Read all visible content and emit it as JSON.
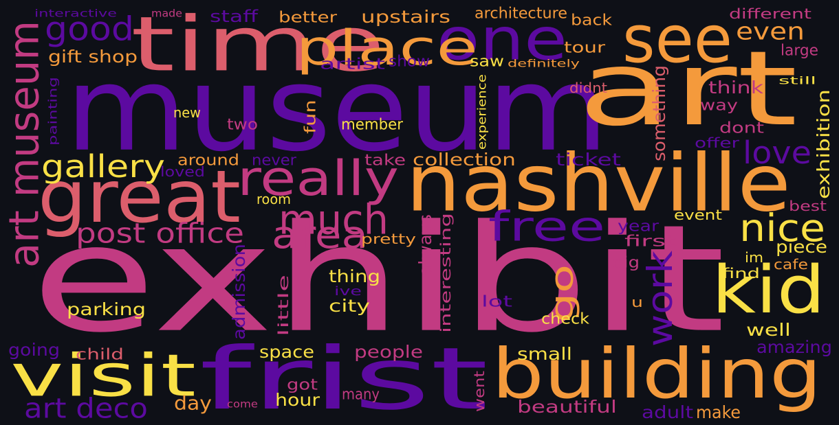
{
  "palette": {
    "background": "#0e1017",
    "deep_purple": "#5c0aa0",
    "magenta": "#c23b82",
    "rose": "#dc5e6c",
    "orange": "#f49a3c",
    "yellow": "#f9e046"
  },
  "words": [
    {
      "text": "exhibit",
      "color": "magenta"
    },
    {
      "text": "museum",
      "color": "deep_purple"
    },
    {
      "text": "art",
      "color": "orange"
    },
    {
      "text": "nashville",
      "color": "orange"
    },
    {
      "text": "frist",
      "color": "deep_purple"
    },
    {
      "text": "building",
      "color": "orange"
    },
    {
      "text": "time",
      "color": "rose"
    },
    {
      "text": "great",
      "color": "rose"
    },
    {
      "text": "see",
      "color": "orange"
    },
    {
      "text": "one",
      "color": "deep_purple"
    },
    {
      "text": "kid",
      "color": "yellow"
    },
    {
      "text": "visit",
      "color": "yellow"
    },
    {
      "text": "place",
      "color": "orange"
    },
    {
      "text": "really",
      "color": "magenta"
    },
    {
      "text": "art museum",
      "color": "magenta"
    },
    {
      "text": "good",
      "color": "deep_purple"
    },
    {
      "text": "free",
      "color": "deep_purple"
    },
    {
      "text": "much",
      "color": "magenta"
    },
    {
      "text": "nice",
      "color": "yellow"
    },
    {
      "text": "area",
      "color": "magenta"
    },
    {
      "text": "go",
      "color": "orange"
    },
    {
      "text": "work",
      "color": "deep_purple"
    },
    {
      "text": "love",
      "color": "deep_purple"
    },
    {
      "text": "even",
      "color": "orange"
    },
    {
      "text": "gallery",
      "color": "yellow"
    },
    {
      "text": "post office",
      "color": "magenta"
    },
    {
      "text": "art deco",
      "color": "deep_purple"
    },
    {
      "text": "gift shop",
      "color": "orange"
    },
    {
      "text": "staff",
      "color": "deep_purple"
    },
    {
      "text": "upstairs",
      "color": "orange"
    },
    {
      "text": "architecture",
      "color": "orange"
    },
    {
      "text": "better",
      "color": "orange"
    },
    {
      "text": "back",
      "color": "orange"
    },
    {
      "text": "different",
      "color": "magenta"
    },
    {
      "text": "interactive",
      "color": "deep_purple"
    },
    {
      "text": "made",
      "color": "magenta"
    },
    {
      "text": "tour",
      "color": "orange"
    },
    {
      "text": "large",
      "color": "magenta"
    },
    {
      "text": "artist",
      "color": "deep_purple"
    },
    {
      "text": "show",
      "color": "deep_purple"
    },
    {
      "text": "saw",
      "color": "yellow"
    },
    {
      "text": "definitely",
      "color": "orange"
    },
    {
      "text": "experience",
      "color": "yellow"
    },
    {
      "text": "still",
      "color": "yellow"
    },
    {
      "text": "think",
      "color": "magenta"
    },
    {
      "text": "didnt",
      "color": "rose"
    },
    {
      "text": "painting",
      "color": "deep_purple"
    },
    {
      "text": "new",
      "color": "yellow"
    },
    {
      "text": "two",
      "color": "magenta"
    },
    {
      "text": "fun",
      "color": "orange"
    },
    {
      "text": "member",
      "color": "yellow"
    },
    {
      "text": "something",
      "color": "rose"
    },
    {
      "text": "way",
      "color": "magenta"
    },
    {
      "text": "dont",
      "color": "magenta"
    },
    {
      "text": "offer",
      "color": "deep_purple"
    },
    {
      "text": "exhibition",
      "color": "yellow"
    },
    {
      "text": "around",
      "color": "orange"
    },
    {
      "text": "never",
      "color": "deep_purple"
    },
    {
      "text": "take",
      "color": "magenta"
    },
    {
      "text": "collection",
      "color": "orange"
    },
    {
      "text": "ticket",
      "color": "deep_purple"
    },
    {
      "text": "loved",
      "color": "deep_purple"
    },
    {
      "text": "room",
      "color": "yellow"
    },
    {
      "text": "best",
      "color": "magenta"
    },
    {
      "text": "event",
      "color": "yellow"
    },
    {
      "text": "year",
      "color": "deep_purple"
    },
    {
      "text": "first",
      "color": "magenta"
    },
    {
      "text": "pretty",
      "color": "orange"
    },
    {
      "text": "always",
      "color": "magenta"
    },
    {
      "text": "piece",
      "color": "yellow"
    },
    {
      "text": "im",
      "color": "yellow"
    },
    {
      "text": "cafe",
      "color": "orange"
    },
    {
      "text": "big",
      "color": "magenta"
    },
    {
      "text": "find",
      "color": "yellow"
    },
    {
      "text": "admission",
      "color": "deep_purple"
    },
    {
      "text": "thing",
      "color": "yellow"
    },
    {
      "text": "ive",
      "color": "deep_purple"
    },
    {
      "text": "parking",
      "color": "yellow"
    },
    {
      "text": "little",
      "color": "magenta"
    },
    {
      "text": "city",
      "color": "yellow"
    },
    {
      "text": "interesting",
      "color": "magenta"
    },
    {
      "text": "lot",
      "color": "deep_purple"
    },
    {
      "text": "u",
      "color": "orange"
    },
    {
      "text": "check",
      "color": "yellow"
    },
    {
      "text": "well",
      "color": "yellow"
    },
    {
      "text": "amazing",
      "color": "deep_purple"
    },
    {
      "text": "going",
      "color": "deep_purple"
    },
    {
      "text": "child",
      "color": "rose"
    },
    {
      "text": "space",
      "color": "yellow"
    },
    {
      "text": "people",
      "color": "magenta"
    },
    {
      "text": "small",
      "color": "yellow"
    },
    {
      "text": "went",
      "color": "magenta"
    },
    {
      "text": "got",
      "color": "magenta"
    },
    {
      "text": "hour",
      "color": "yellow"
    },
    {
      "text": "many",
      "color": "magenta"
    },
    {
      "text": "day",
      "color": "orange"
    },
    {
      "text": "come",
      "color": "magenta"
    },
    {
      "text": "beautiful",
      "color": "magenta"
    },
    {
      "text": "adult",
      "color": "deep_purple"
    },
    {
      "text": "make",
      "color": "orange"
    }
  ]
}
